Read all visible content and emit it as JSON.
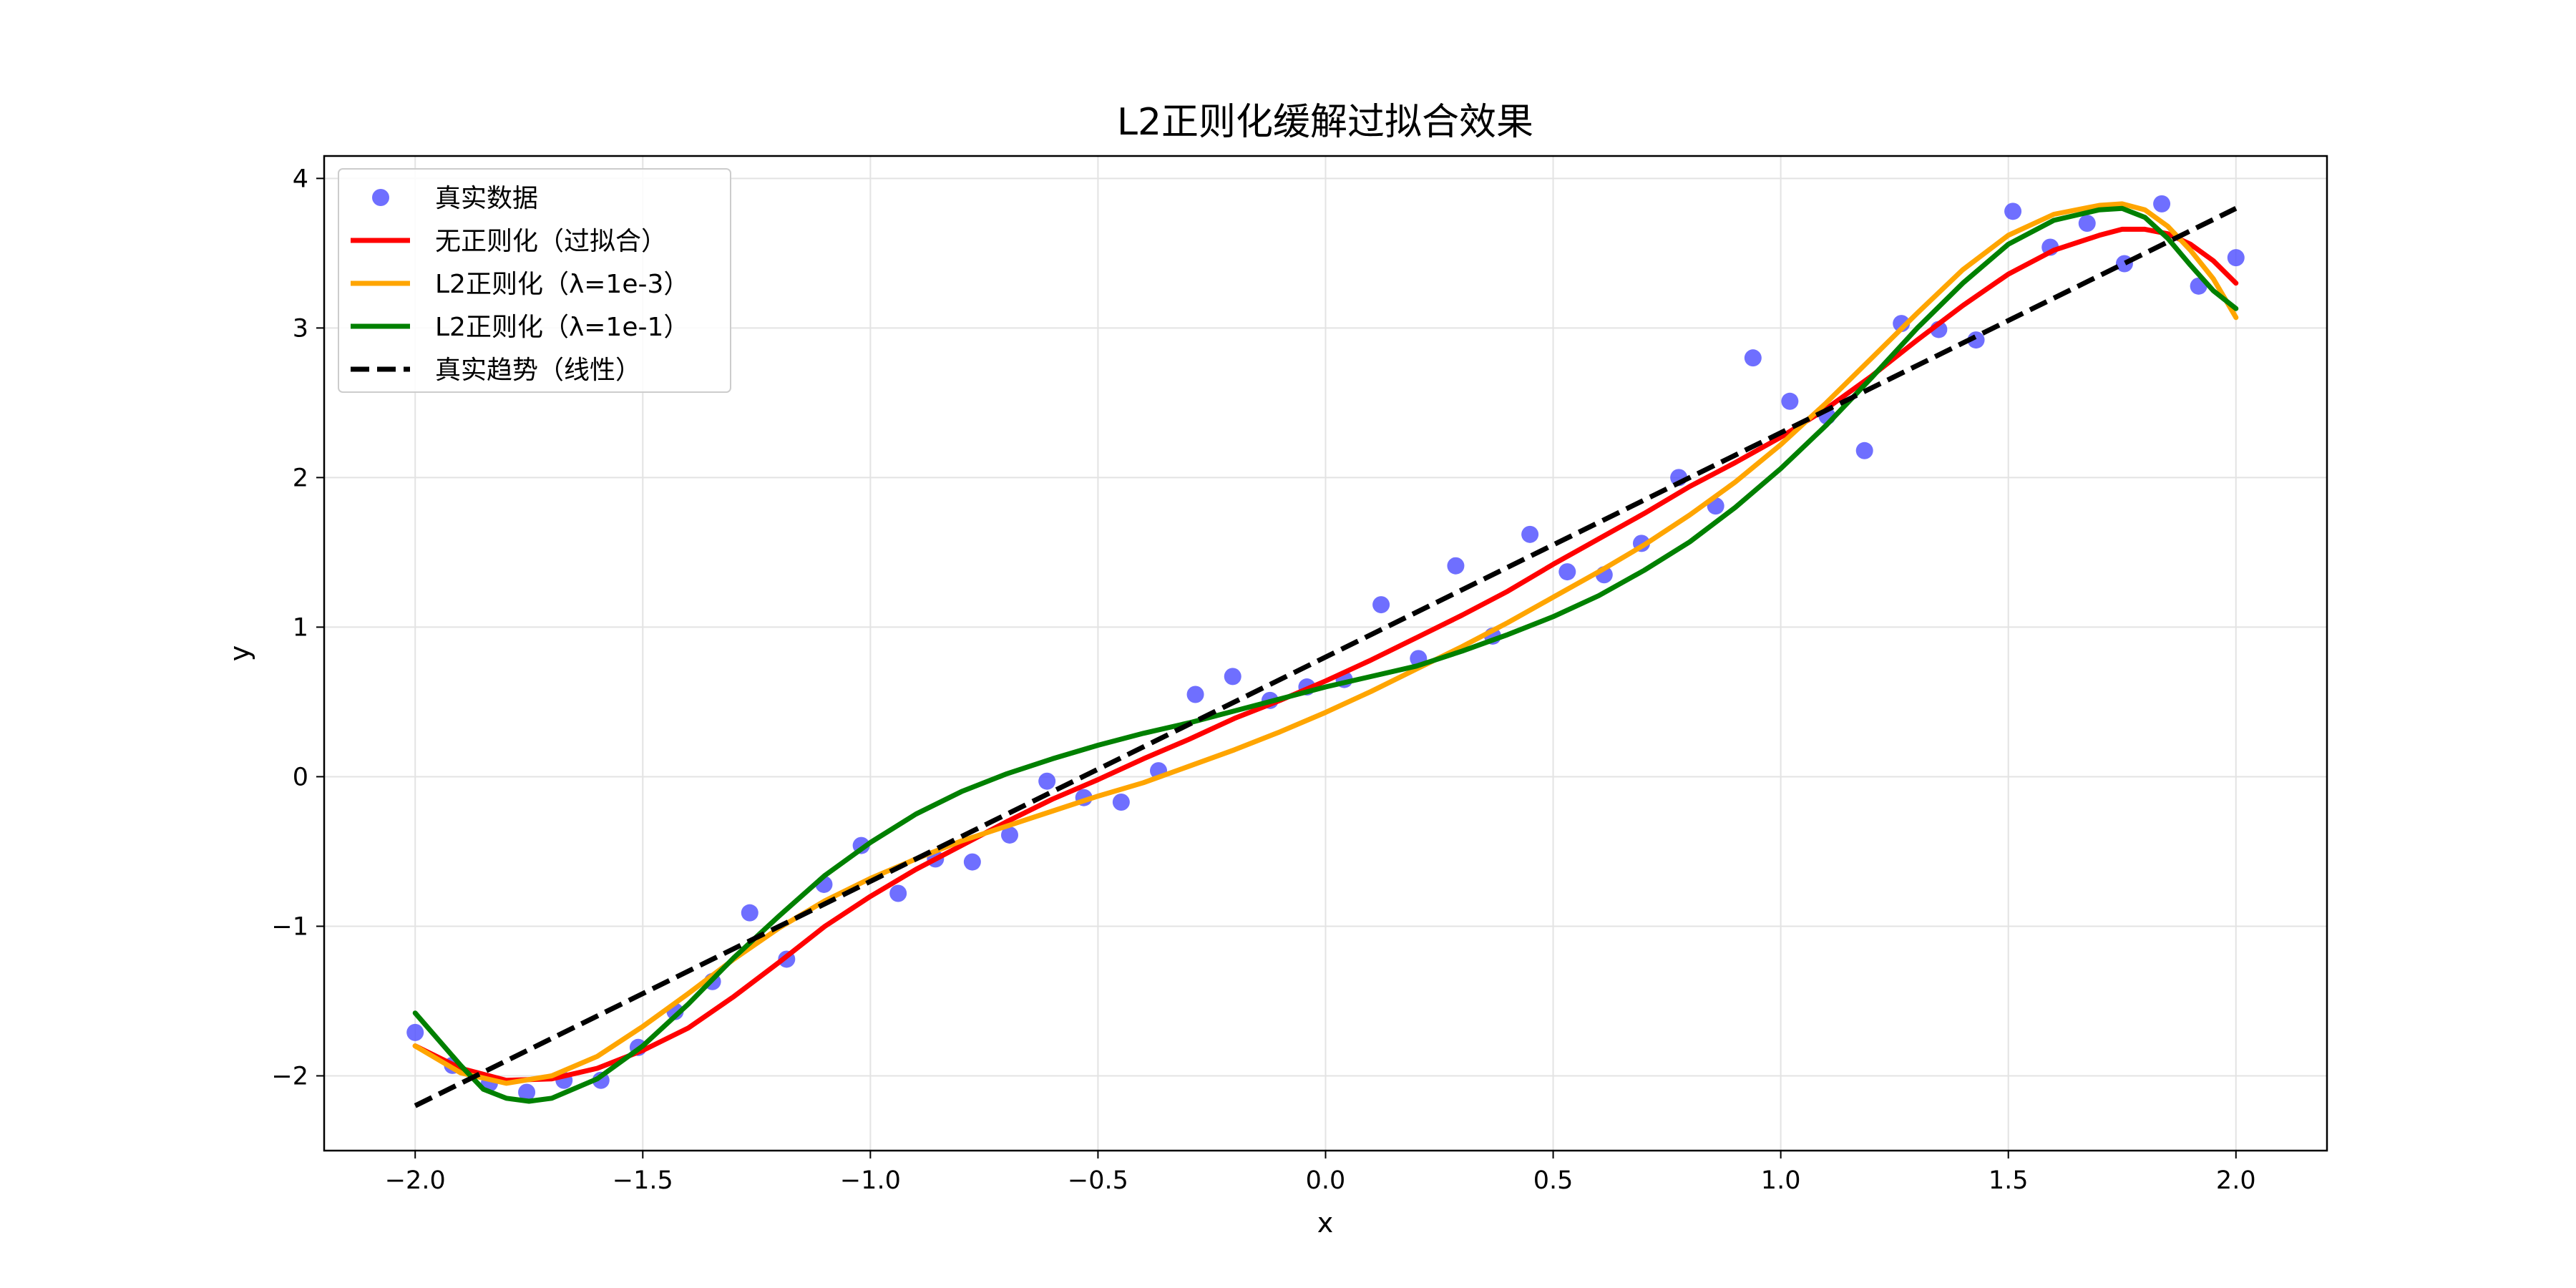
{
  "chart_data": {
    "type": "line",
    "title": "L2正则化缓解过拟合效果",
    "xlabel": "x",
    "ylabel": "y",
    "xlim": [
      -2.2,
      2.2
    ],
    "ylim": [
      -2.5,
      4.15
    ],
    "xticks": [
      -2.0,
      -1.5,
      -1.0,
      -0.5,
      0.0,
      0.5,
      1.0,
      1.5,
      2.0
    ],
    "xtick_labels": [
      "−2.0",
      "−1.5",
      "−1.0",
      "−0.5",
      "0.0",
      "0.5",
      "1.0",
      "1.5",
      "2.0"
    ],
    "yticks": [
      -2,
      -1,
      0,
      1,
      2,
      3,
      4
    ],
    "ytick_labels": [
      "−2",
      "−1",
      "0",
      "1",
      "2",
      "3",
      "4"
    ],
    "grid": true,
    "legend_position": "top-left",
    "scatter": {
      "name": "真实数据",
      "color": "#4f4fff",
      "x": [
        -2.0,
        -1.918,
        -1.837,
        -1.755,
        -1.673,
        -1.592,
        -1.51,
        -1.429,
        -1.347,
        -1.265,
        -1.184,
        -1.102,
        -1.02,
        -0.939,
        -0.857,
        -0.776,
        -0.694,
        -0.612,
        -0.531,
        -0.449,
        -0.367,
        -0.286,
        -0.204,
        -0.122,
        -0.041,
        0.041,
        0.122,
        0.204,
        0.286,
        0.367,
        0.449,
        0.531,
        0.612,
        0.694,
        0.776,
        0.857,
        0.939,
        1.02,
        1.102,
        1.184,
        1.265,
        1.347,
        1.429,
        1.51,
        1.592,
        1.673,
        1.755,
        1.837,
        1.918,
        2.0
      ],
      "y": [
        -1.71,
        -1.93,
        -2.05,
        -2.11,
        -2.03,
        -2.03,
        -1.81,
        -1.57,
        -1.37,
        -0.91,
        -1.22,
        -0.72,
        -0.46,
        -0.78,
        -0.55,
        -0.57,
        -0.39,
        -0.03,
        -0.14,
        -0.17,
        0.04,
        0.55,
        0.67,
        0.51,
        0.6,
        0.65,
        1.15,
        0.79,
        1.41,
        0.94,
        1.62,
        1.37,
        1.35,
        1.56,
        2.0,
        1.81,
        2.8,
        2.51,
        2.41,
        2.18,
        3.03,
        2.99,
        2.92,
        3.78,
        3.54,
        3.7,
        3.43,
        3.83,
        3.28,
        3.47
      ]
    },
    "series": [
      {
        "name": "无正则化（过拟合）",
        "color": "#ff0000",
        "x": [
          -2.0,
          -1.9,
          -1.8,
          -1.7,
          -1.6,
          -1.5,
          -1.4,
          -1.3,
          -1.2,
          -1.1,
          -1.0,
          -0.9,
          -0.8,
          -0.7,
          -0.6,
          -0.5,
          -0.4,
          -0.3,
          -0.2,
          -0.1,
          0.0,
          0.1,
          0.2,
          0.3,
          0.4,
          0.5,
          0.6,
          0.7,
          0.8,
          0.9,
          1.0,
          1.1,
          1.2,
          1.3,
          1.4,
          1.5,
          1.6,
          1.7,
          1.75,
          1.8,
          1.85,
          1.9,
          1.95,
          2.0
        ],
        "y": [
          -1.8,
          -1.95,
          -2.03,
          -2.02,
          -1.95,
          -1.83,
          -1.68,
          -1.47,
          -1.24,
          -1.0,
          -0.8,
          -0.62,
          -0.46,
          -0.3,
          -0.15,
          -0.02,
          0.12,
          0.25,
          0.39,
          0.51,
          0.64,
          0.78,
          0.93,
          1.08,
          1.24,
          1.42,
          1.59,
          1.76,
          1.94,
          2.1,
          2.27,
          2.46,
          2.68,
          2.92,
          3.15,
          3.36,
          3.52,
          3.62,
          3.66,
          3.66,
          3.63,
          3.56,
          3.45,
          3.3
        ]
      },
      {
        "name": "L2正则化（λ=1e-3）",
        "color": "#ffa500",
        "x": [
          -2.0,
          -1.9,
          -1.8,
          -1.7,
          -1.6,
          -1.5,
          -1.4,
          -1.3,
          -1.2,
          -1.1,
          -1.0,
          -0.9,
          -0.8,
          -0.7,
          -0.6,
          -0.5,
          -0.4,
          -0.3,
          -0.2,
          -0.1,
          0.0,
          0.1,
          0.2,
          0.3,
          0.4,
          0.5,
          0.6,
          0.7,
          0.8,
          0.9,
          1.0,
          1.1,
          1.2,
          1.3,
          1.4,
          1.5,
          1.6,
          1.7,
          1.75,
          1.8,
          1.85,
          1.9,
          1.95,
          2.0
        ],
        "y": [
          -1.8,
          -1.98,
          -2.05,
          -2.0,
          -1.87,
          -1.67,
          -1.45,
          -1.22,
          -1.01,
          -0.83,
          -0.68,
          -0.55,
          -0.43,
          -0.33,
          -0.23,
          -0.13,
          -0.04,
          0.07,
          0.18,
          0.3,
          0.43,
          0.57,
          0.72,
          0.87,
          1.03,
          1.2,
          1.37,
          1.55,
          1.75,
          1.97,
          2.22,
          2.5,
          2.8,
          3.1,
          3.39,
          3.62,
          3.76,
          3.82,
          3.83,
          3.79,
          3.68,
          3.52,
          3.33,
          3.07
        ]
      },
      {
        "name": "L2正则化（λ=1e-1）",
        "color": "#008000",
        "x": [
          -2.0,
          -1.9,
          -1.85,
          -1.8,
          -1.75,
          -1.7,
          -1.6,
          -1.5,
          -1.4,
          -1.3,
          -1.2,
          -1.1,
          -1.0,
          -0.9,
          -0.8,
          -0.7,
          -0.6,
          -0.5,
          -0.4,
          -0.3,
          -0.2,
          -0.1,
          0.0,
          0.1,
          0.2,
          0.3,
          0.4,
          0.5,
          0.6,
          0.7,
          0.8,
          0.9,
          1.0,
          1.1,
          1.2,
          1.3,
          1.4,
          1.5,
          1.6,
          1.7,
          1.75,
          1.8,
          1.85,
          1.9,
          1.95,
          2.0
        ],
        "y": [
          -1.58,
          -1.93,
          -2.09,
          -2.15,
          -2.17,
          -2.15,
          -2.02,
          -1.8,
          -1.52,
          -1.21,
          -0.93,
          -0.66,
          -0.44,
          -0.25,
          -0.1,
          0.02,
          0.12,
          0.21,
          0.29,
          0.36,
          0.44,
          0.52,
          0.6,
          0.67,
          0.74,
          0.84,
          0.95,
          1.07,
          1.21,
          1.38,
          1.57,
          1.8,
          2.06,
          2.35,
          2.67,
          3.0,
          3.3,
          3.56,
          3.72,
          3.79,
          3.8,
          3.74,
          3.6,
          3.42,
          3.25,
          3.13
        ]
      },
      {
        "name": "真实趋势（线性）",
        "color": "#000000",
        "dashed": true,
        "x": [
          -2.0,
          2.0
        ],
        "y": [
          -2.2,
          3.8
        ]
      }
    ]
  }
}
